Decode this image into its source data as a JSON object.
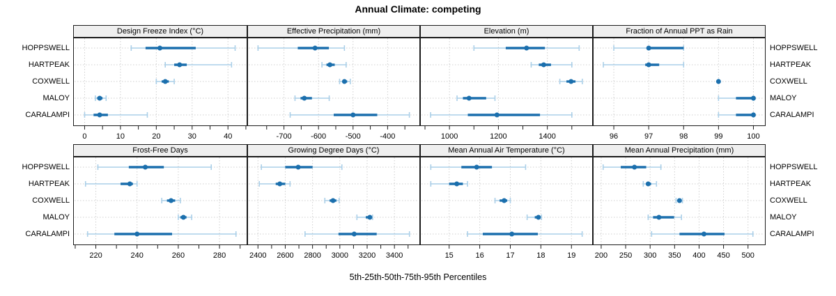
{
  "title": "Annual Climate: competing",
  "xlabel": "5th-25th-50th-75th-95th Percentiles",
  "colors": {
    "median_dot": "#1b6fad",
    "iqr_bar": "#1b6fad",
    "whisker": "#aacfe8",
    "grid": "#cfcfcf",
    "strip_bg": "#efefef",
    "panel_border": "#1a1a1a",
    "text": "#000000"
  },
  "chart_data": {
    "type": "scatter",
    "subtype": "trellis-percentile-dotplot",
    "title": "Annual Climate: competing",
    "xlabel": "5th-25th-50th-75th-95th Percentiles",
    "legend_position": "none",
    "grid": "dashed-major",
    "rows": 2,
    "cols": 4,
    "percentile_labels": [
      "5th",
      "25th",
      "50th",
      "75th",
      "95th"
    ],
    "sites": [
      "HOPPSWELL",
      "HARTPEAK",
      "COXWELL",
      "MALOY",
      "CARALAMPI"
    ],
    "panels": [
      {
        "title": "Design Freeze Index (°C)",
        "domain": [
          -3.2,
          45.4
        ],
        "major_ticks": [
          0,
          10,
          20,
          30,
          40
        ],
        "minor_ticks": [
          5,
          15,
          25,
          35,
          45
        ],
        "values": [
          [
            13,
            17,
            21,
            31,
            42
          ],
          [
            22.5,
            25,
            26.5,
            28.5,
            41
          ],
          [
            20,
            21.5,
            22.5,
            23.5,
            25
          ],
          [
            3,
            3.5,
            4.2,
            5,
            6
          ],
          [
            0,
            2.5,
            4.2,
            6.5,
            17.5
          ]
        ]
      },
      {
        "title": "Effective Precipitation (mm)",
        "domain": [
          -806,
          -306
        ],
        "major_ticks": [
          -700,
          -600,
          -500,
          -400
        ],
        "minor_ticks": [
          -750,
          -650,
          -550,
          -450,
          -350
        ],
        "values": [
          [
            -775,
            -660,
            -610,
            -570,
            -525
          ],
          [
            -590,
            -577,
            -567,
            -553,
            -520
          ],
          [
            -539,
            -530,
            -525,
            -517,
            -508
          ],
          [
            -668,
            -652,
            -641,
            -619,
            -569
          ],
          [
            -682,
            -556,
            -500,
            -430,
            -337
          ]
        ]
      },
      {
        "title": "Elevation (m)",
        "domain": [
          880,
          1586
        ],
        "major_ticks": [
          1000,
          1200,
          1400
        ],
        "minor_ticks": [
          900,
          1100,
          1300,
          1500
        ],
        "values": [
          [
            1100,
            1230,
            1315,
            1390,
            1530
          ],
          [
            1334,
            1365,
            1385,
            1415,
            1500
          ],
          [
            1451,
            1478,
            1497,
            1515,
            1543
          ],
          [
            1031,
            1055,
            1080,
            1150,
            1186
          ],
          [
            923,
            1075,
            1194,
            1370,
            1500
          ]
        ]
      },
      {
        "title": "Fraction of Annual PPT as Rain",
        "domain": [
          95.4,
          100.35
        ],
        "major_ticks": [
          96,
          97,
          98,
          99,
          100
        ],
        "minor_ticks": [],
        "values": [
          [
            96,
            97,
            97,
            98,
            98
          ],
          [
            95.7,
            96.9,
            97,
            97.3,
            98
          ],
          [
            99,
            99,
            99,
            99,
            99
          ],
          [
            99,
            99.5,
            100,
            100,
            100
          ],
          [
            99,
            99.5,
            100,
            100,
            100
          ]
        ]
      },
      {
        "title": "Frost-Free Days",
        "domain": [
          209,
          293.5
        ],
        "major_ticks": [
          220,
          240,
          260,
          280
        ],
        "minor_ticks": [
          210,
          230,
          250,
          270,
          290
        ],
        "values": [
          [
            221,
            236,
            244,
            253,
            276
          ],
          [
            215,
            232,
            236.5,
            238,
            240
          ],
          [
            252,
            254.5,
            256.5,
            258.5,
            261
          ],
          [
            260,
            261,
            262.5,
            264,
            266.5
          ],
          [
            216,
            229,
            240,
            257,
            288
          ]
        ]
      },
      {
        "title": "Growing Degree Days (°C)",
        "domain": [
          2322,
          3588
        ],
        "major_ticks": [
          2400,
          2600,
          2800,
          3000,
          3200,
          3400
        ],
        "minor_ticks": [
          2500,
          2700,
          2900,
          3100,
          3300,
          3500
        ],
        "values": [
          [
            2425,
            2600,
            2695,
            2800,
            3015
          ],
          [
            2410,
            2530,
            2560,
            2600,
            2635
          ],
          [
            2890,
            2925,
            2950,
            2975,
            2995
          ],
          [
            3125,
            3190,
            3220,
            3232,
            3240
          ],
          [
            2745,
            2990,
            3105,
            3270,
            3510
          ]
        ]
      },
      {
        "title": "Mean Annual Air Temperature (°C)",
        "domain": [
          14.05,
          19.7
        ],
        "major_ticks": [
          15,
          16,
          17,
          18,
          19
        ],
        "minor_ticks": [],
        "values": [
          [
            14.4,
            15.4,
            15.9,
            16.4,
            17.5
          ],
          [
            14.4,
            15.0,
            15.25,
            15.45,
            15.6
          ],
          [
            16.5,
            16.65,
            16.8,
            16.9,
            17.0
          ],
          [
            17.55,
            17.8,
            17.92,
            17.98,
            18.02
          ],
          [
            15.6,
            16.1,
            17.05,
            17.9,
            19.35
          ]
        ]
      },
      {
        "title": "Mean Annual Precipitation (mm)",
        "domain": [
          183,
          536
        ],
        "major_ticks": [
          200,
          250,
          300,
          350,
          400,
          450,
          500
        ],
        "minor_ticks": [],
        "values": [
          [
            204,
            240,
            268,
            292,
            322
          ],
          [
            286,
            292,
            296,
            302,
            313
          ],
          [
            353,
            357,
            360,
            363,
            366
          ],
          [
            296,
            306,
            318,
            349,
            364
          ],
          [
            303,
            360,
            410,
            452,
            510
          ]
        ]
      }
    ]
  }
}
